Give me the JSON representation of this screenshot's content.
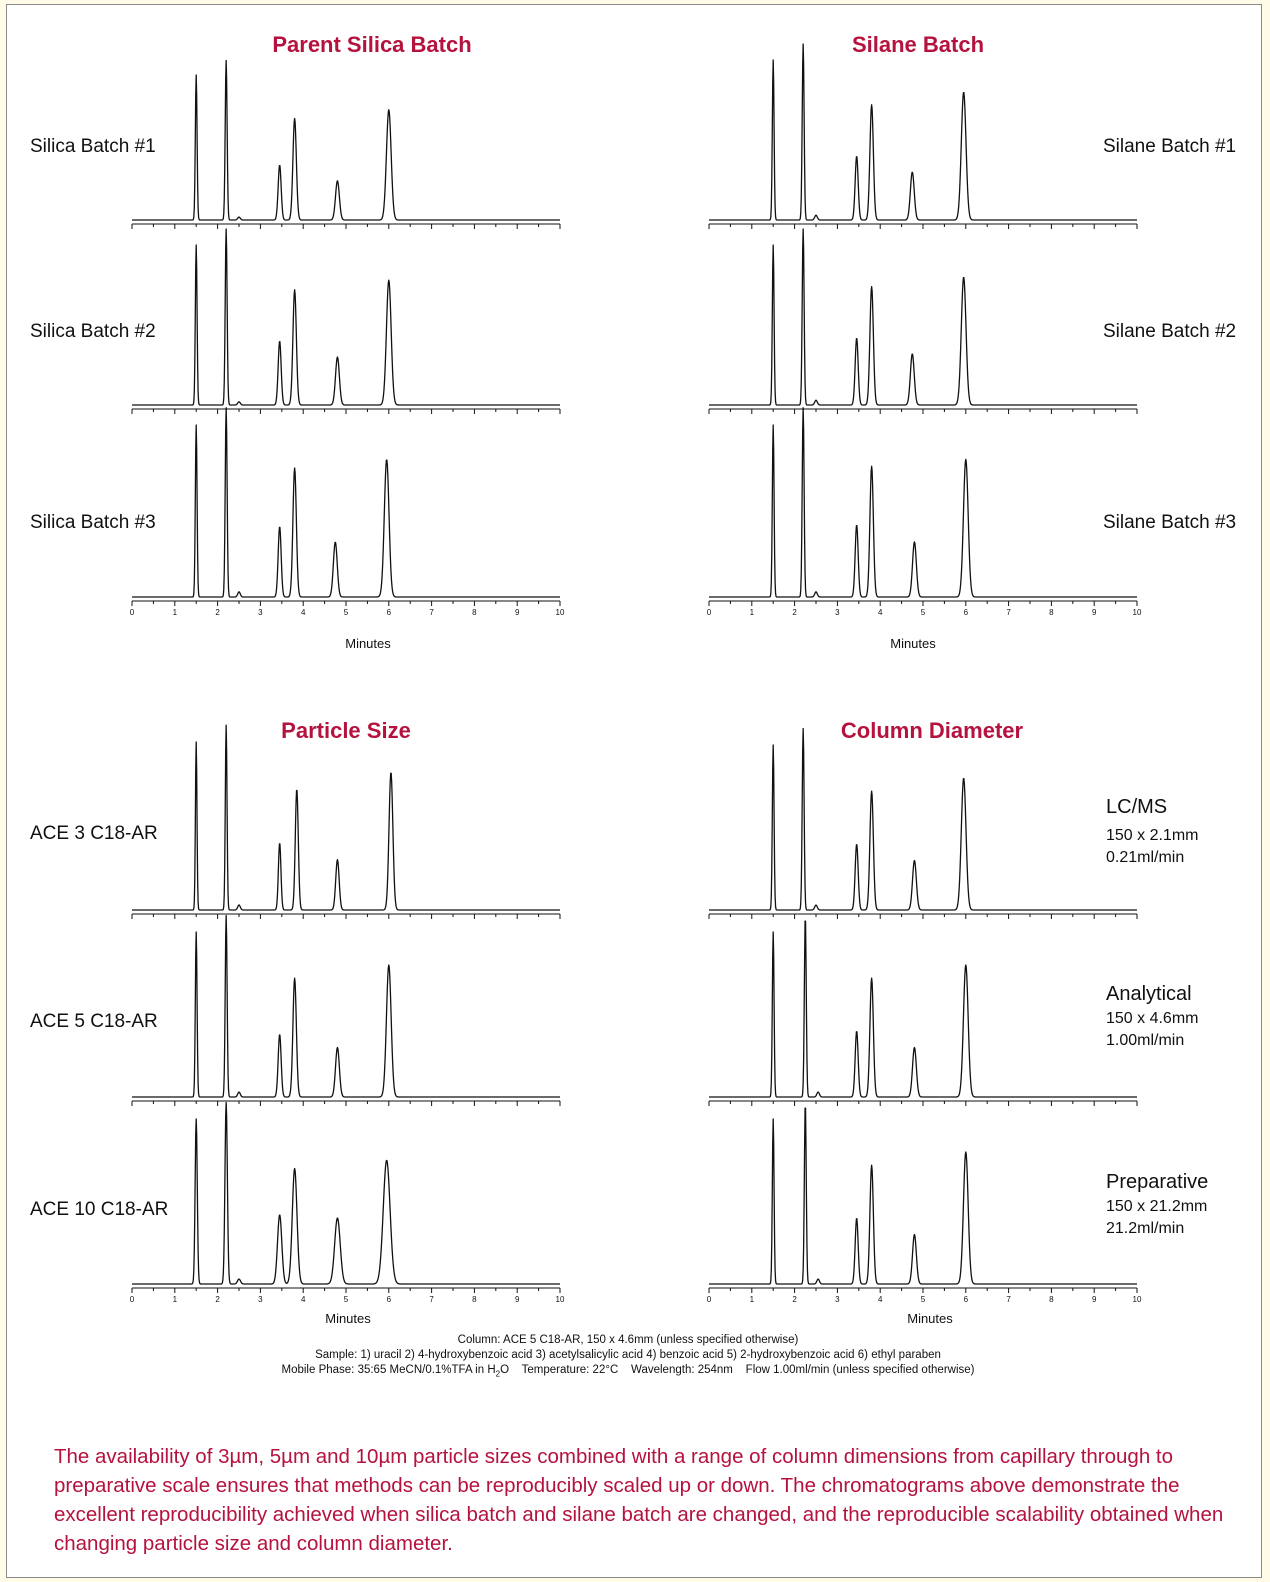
{
  "colors": {
    "accent": "#b5123e",
    "trace": "#111111",
    "page_bg": "#fffbe6"
  },
  "conditions": {
    "column": "Column: ACE 5 C18-AR, 150 x 4.6mm (unless specified otherwise)",
    "sample": "Sample: 1) uracil  2) 4-hydroxybenzoic acid  3) acetylsalicylic acid  4) benzoic acid  5) 2-hydroxybenzoic acid  6) ethyl paraben",
    "mobile_phase_pre": "Mobile Phase: 35:65 MeCN/0.1%TFA in H",
    "mobile_phase_sub": "2",
    "mobile_phase_post": "O    Temperature: 22°C    Wavelength: 254nm    Flow 1.00ml/min (unless specified otherwise)"
  },
  "description": "The availability of 3µm, 5µm and 10µm particle sizes combined with a range of column dimensions from capillary through to preparative scale ensures that methods can be reproducibly scaled up or down.  The chromatograms above demonstrate the excellent reproducibility achieved when silica batch and silane batch are changed, and the reproducible scalability obtained when changing particle size and column diameter.",
  "chart_data": [
    {
      "type": "line",
      "title": "Parent Silica Batch",
      "xlabel": "Minutes",
      "ylabel": "",
      "xlim": [
        0,
        10
      ],
      "xticks": [
        "0",
        "1",
        "2",
        "3",
        "4",
        "5",
        "6",
        "7",
        "8",
        "9",
        "10"
      ],
      "series": [
        {
          "name": "Silica Batch #1",
          "peaks": [
            [
              1.5,
              1.0,
              0.02
            ],
            [
              2.2,
              1.1,
              0.022
            ],
            [
              2.5,
              0.02,
              0.03
            ],
            [
              3.45,
              0.38,
              0.035
            ],
            [
              3.8,
              0.7,
              0.04
            ],
            [
              4.8,
              0.27,
              0.045
            ],
            [
              6.0,
              0.76,
              0.055
            ]
          ]
        },
        {
          "name": "Silica Batch #2",
          "peaks": [
            [
              1.5,
              1.0,
              0.02
            ],
            [
              2.2,
              1.1,
              0.022
            ],
            [
              2.5,
              0.02,
              0.03
            ],
            [
              3.45,
              0.4,
              0.035
            ],
            [
              3.8,
              0.72,
              0.04
            ],
            [
              4.8,
              0.3,
              0.045
            ],
            [
              6.0,
              0.78,
              0.055
            ]
          ]
        },
        {
          "name": "Silica Batch #3",
          "peaks": [
            [
              1.5,
              1.0,
              0.02
            ],
            [
              2.2,
              1.1,
              0.022
            ],
            [
              2.5,
              0.03,
              0.03
            ],
            [
              3.45,
              0.41,
              0.035
            ],
            [
              3.8,
              0.75,
              0.04
            ],
            [
              4.75,
              0.32,
              0.045
            ],
            [
              5.95,
              0.8,
              0.055
            ]
          ]
        }
      ]
    },
    {
      "type": "line",
      "title": "Silane Batch",
      "xlabel": "Minutes",
      "ylabel": "",
      "xlim": [
        0,
        10
      ],
      "xticks": [
        "0",
        "1",
        "2",
        "3",
        "4",
        "5",
        "6",
        "7",
        "8",
        "9",
        "10"
      ],
      "series": [
        {
          "name": "Silane Batch #1",
          "peaks": [
            [
              1.5,
              1.0,
              0.02
            ],
            [
              2.2,
              1.1,
              0.022
            ],
            [
              2.5,
              0.03,
              0.03
            ],
            [
              3.45,
              0.4,
              0.035
            ],
            [
              3.8,
              0.72,
              0.04
            ],
            [
              4.75,
              0.3,
              0.045
            ],
            [
              5.95,
              0.8,
              0.055
            ]
          ]
        },
        {
          "name": "Silane Batch #2",
          "peaks": [
            [
              1.5,
              1.0,
              0.02
            ],
            [
              2.2,
              1.1,
              0.022
            ],
            [
              2.5,
              0.03,
              0.03
            ],
            [
              3.45,
              0.42,
              0.035
            ],
            [
              3.8,
              0.74,
              0.04
            ],
            [
              4.75,
              0.32,
              0.045
            ],
            [
              5.95,
              0.8,
              0.055
            ]
          ]
        },
        {
          "name": "Silane Batch #3",
          "peaks": [
            [
              1.5,
              1.0,
              0.02
            ],
            [
              2.2,
              1.1,
              0.022
            ],
            [
              2.5,
              0.03,
              0.03
            ],
            [
              3.45,
              0.42,
              0.035
            ],
            [
              3.8,
              0.76,
              0.04
            ],
            [
              4.8,
              0.32,
              0.045
            ],
            [
              6.0,
              0.8,
              0.055
            ]
          ]
        }
      ]
    },
    {
      "type": "line",
      "title": "Particle Size",
      "xlabel": "Minutes",
      "ylabel": "",
      "xlim": [
        0,
        10
      ],
      "xticks": [
        "0",
        "1",
        "2",
        "3",
        "4",
        "5",
        "6",
        "7",
        "8",
        "9",
        "10"
      ],
      "series": [
        {
          "name": "ACE 3 C18-AR",
          "peaks": [
            [
              1.5,
              1.0,
              0.018
            ],
            [
              2.2,
              1.1,
              0.02
            ],
            [
              2.5,
              0.03,
              0.03
            ],
            [
              3.45,
              0.4,
              0.03
            ],
            [
              3.85,
              0.72,
              0.035
            ],
            [
              4.8,
              0.3,
              0.04
            ],
            [
              6.05,
              0.82,
              0.045
            ]
          ]
        },
        {
          "name": "ACE 5 C18-AR",
          "peaks": [
            [
              1.5,
              1.0,
              0.02
            ],
            [
              2.2,
              1.1,
              0.022
            ],
            [
              2.5,
              0.03,
              0.03
            ],
            [
              3.45,
              0.38,
              0.035
            ],
            [
              3.8,
              0.72,
              0.04
            ],
            [
              4.8,
              0.3,
              0.045
            ],
            [
              6.0,
              0.8,
              0.055
            ]
          ]
        },
        {
          "name": "ACE 10 C18-AR",
          "peaks": [
            [
              1.5,
              1.0,
              0.025
            ],
            [
              2.2,
              1.1,
              0.028
            ],
            [
              2.5,
              0.03,
              0.035
            ],
            [
              3.45,
              0.42,
              0.05
            ],
            [
              3.8,
              0.7,
              0.055
            ],
            [
              4.8,
              0.4,
              0.065
            ],
            [
              5.95,
              0.75,
              0.08
            ]
          ]
        }
      ]
    },
    {
      "type": "line",
      "title": "Column Diameter",
      "xlabel": "Minutes",
      "ylabel": "",
      "xlim": [
        0,
        10
      ],
      "xticks": [
        "0",
        "1",
        "2",
        "3",
        "4",
        "5",
        "6",
        "7",
        "8",
        "9",
        "10"
      ],
      "series": [
        {
          "name": "LC/MS",
          "line1": "150 x 2.1mm",
          "line2": "0.21ml/min",
          "peaks": [
            [
              1.5,
              1.0,
              0.02
            ],
            [
              2.2,
              1.1,
              0.022
            ],
            [
              2.5,
              0.03,
              0.03
            ],
            [
              3.45,
              0.4,
              0.035
            ],
            [
              3.8,
              0.72,
              0.04
            ],
            [
              4.8,
              0.3,
              0.045
            ],
            [
              5.95,
              0.8,
              0.055
            ]
          ]
        },
        {
          "name": "Analytical",
          "line1": "150 x 4.6mm",
          "line2": "1.00ml/min",
          "peaks": [
            [
              1.5,
              1.0,
              0.02
            ],
            [
              2.25,
              1.1,
              0.022
            ],
            [
              2.55,
              0.03,
              0.03
            ],
            [
              3.45,
              0.4,
              0.035
            ],
            [
              3.8,
              0.72,
              0.04
            ],
            [
              4.8,
              0.3,
              0.045
            ],
            [
              6.0,
              0.8,
              0.055
            ]
          ]
        },
        {
          "name": "Preparative",
          "line1": "150 x 21.2mm",
          "line2": "21.2ml/min",
          "peaks": [
            [
              1.5,
              1.0,
              0.02
            ],
            [
              2.25,
              1.1,
              0.022
            ],
            [
              2.55,
              0.03,
              0.03
            ],
            [
              3.45,
              0.4,
              0.035
            ],
            [
              3.8,
              0.72,
              0.04
            ],
            [
              4.8,
              0.3,
              0.045
            ],
            [
              6.0,
              0.8,
              0.055
            ]
          ]
        }
      ]
    }
  ]
}
